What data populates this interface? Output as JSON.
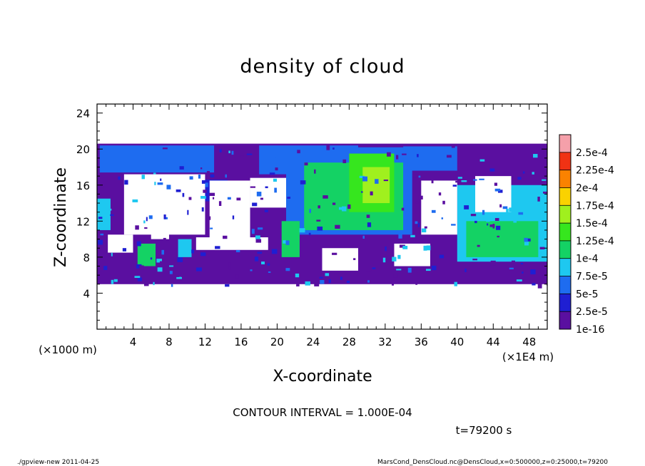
{
  "chart_data": {
    "type": "heatmap",
    "title": "density of cloud",
    "xlabel": "X-coordinate",
    "ylabel": "Z-coordinate",
    "x_unit_label": "(×1E4 m)",
    "y_unit_label": "(×1000 m)",
    "xlim": [
      0,
      50
    ],
    "ylim": [
      0,
      25
    ],
    "x_ticks": [
      4,
      8,
      12,
      16,
      20,
      24,
      28,
      32,
      36,
      40,
      44,
      48
    ],
    "y_ticks": [
      4,
      8,
      12,
      16,
      20,
      24
    ],
    "contour_interval_text": "CONTOUR INTERVAL = 1.000E-04",
    "time_text": "t=79200 s",
    "colorbar": {
      "levels": [
        {
          "label": "1e-16",
          "color": "#5a0fa0"
        },
        {
          "label": "2.5e-5",
          "color": "#1f1fd2"
        },
        {
          "label": "5e-5",
          "color": "#1e6cf0"
        },
        {
          "label": "7.5e-5",
          "color": "#1ec8f0"
        },
        {
          "label": "1e-4",
          "color": "#14d264"
        },
        {
          "label": "1.25e-4",
          "color": "#36e61e"
        },
        {
          "label": "1.5e-4",
          "color": "#a0f01e"
        },
        {
          "label": "1.75e-4",
          "color": "#fad200"
        },
        {
          "label": "2e-4",
          "color": "#fa8200"
        },
        {
          "label": "2.25e-4",
          "color": "#f03214"
        },
        {
          "label": "2.5e-4",
          "color": "#f08c96"
        }
      ],
      "top_color": "#f5a0aa"
    },
    "field": {
      "background_color": "#ffffff",
      "domain_band_z": [
        5,
        20.6
      ],
      "regions": [
        {
          "level": 0,
          "x": [
            0,
            50
          ],
          "z": [
            5.0,
            20.6
          ]
        },
        {
          "level": 2,
          "x": [
            0.3,
            13
          ],
          "z": [
            17.4,
            20.4
          ]
        },
        {
          "level": 1,
          "x": [
            7.5,
            14.5
          ],
          "z": [
            14.2,
            16.6
          ]
        },
        {
          "level": 2,
          "x": [
            18,
            29
          ],
          "z": [
            17.2,
            20.4
          ]
        },
        {
          "level": 2,
          "x": [
            34,
            40
          ],
          "z": [
            17.6,
            20.3
          ]
        },
        {
          "level": 2,
          "x": [
            21,
            35
          ],
          "z": [
            10.5,
            20.2
          ]
        },
        {
          "level": 4,
          "x": [
            23,
            34
          ],
          "z": [
            11.0,
            18.5
          ]
        },
        {
          "level": 5,
          "x": [
            28,
            33
          ],
          "z": [
            13.0,
            19.5
          ]
        },
        {
          "level": 6,
          "x": [
            29.5,
            32.5
          ],
          "z": [
            14.0,
            18.0
          ]
        },
        {
          "level": 4,
          "x": [
            20.5,
            22.5
          ],
          "z": [
            8.0,
            12.0
          ]
        },
        {
          "level": 4,
          "x": [
            4.5,
            6.5
          ],
          "z": [
            7.0,
            9.5
          ]
        },
        {
          "level": 3,
          "x": [
            9,
            10.5
          ],
          "z": [
            8.0,
            10.0
          ]
        },
        {
          "level": 3,
          "x": [
            40,
            50
          ],
          "z": [
            7.5,
            16.0
          ]
        },
        {
          "level": 4,
          "x": [
            41,
            49
          ],
          "z": [
            8.0,
            12.0
          ]
        },
        {
          "level": 3,
          "x": [
            0,
            1.5
          ],
          "z": [
            11,
            14.5
          ]
        }
      ]
    }
  },
  "footer": {
    "left": "./gpview-new   2011-04-25",
    "right": "MarsCond_DensCloud.nc@DensCloud,x=0:500000,z=0:25000,t=79200"
  }
}
